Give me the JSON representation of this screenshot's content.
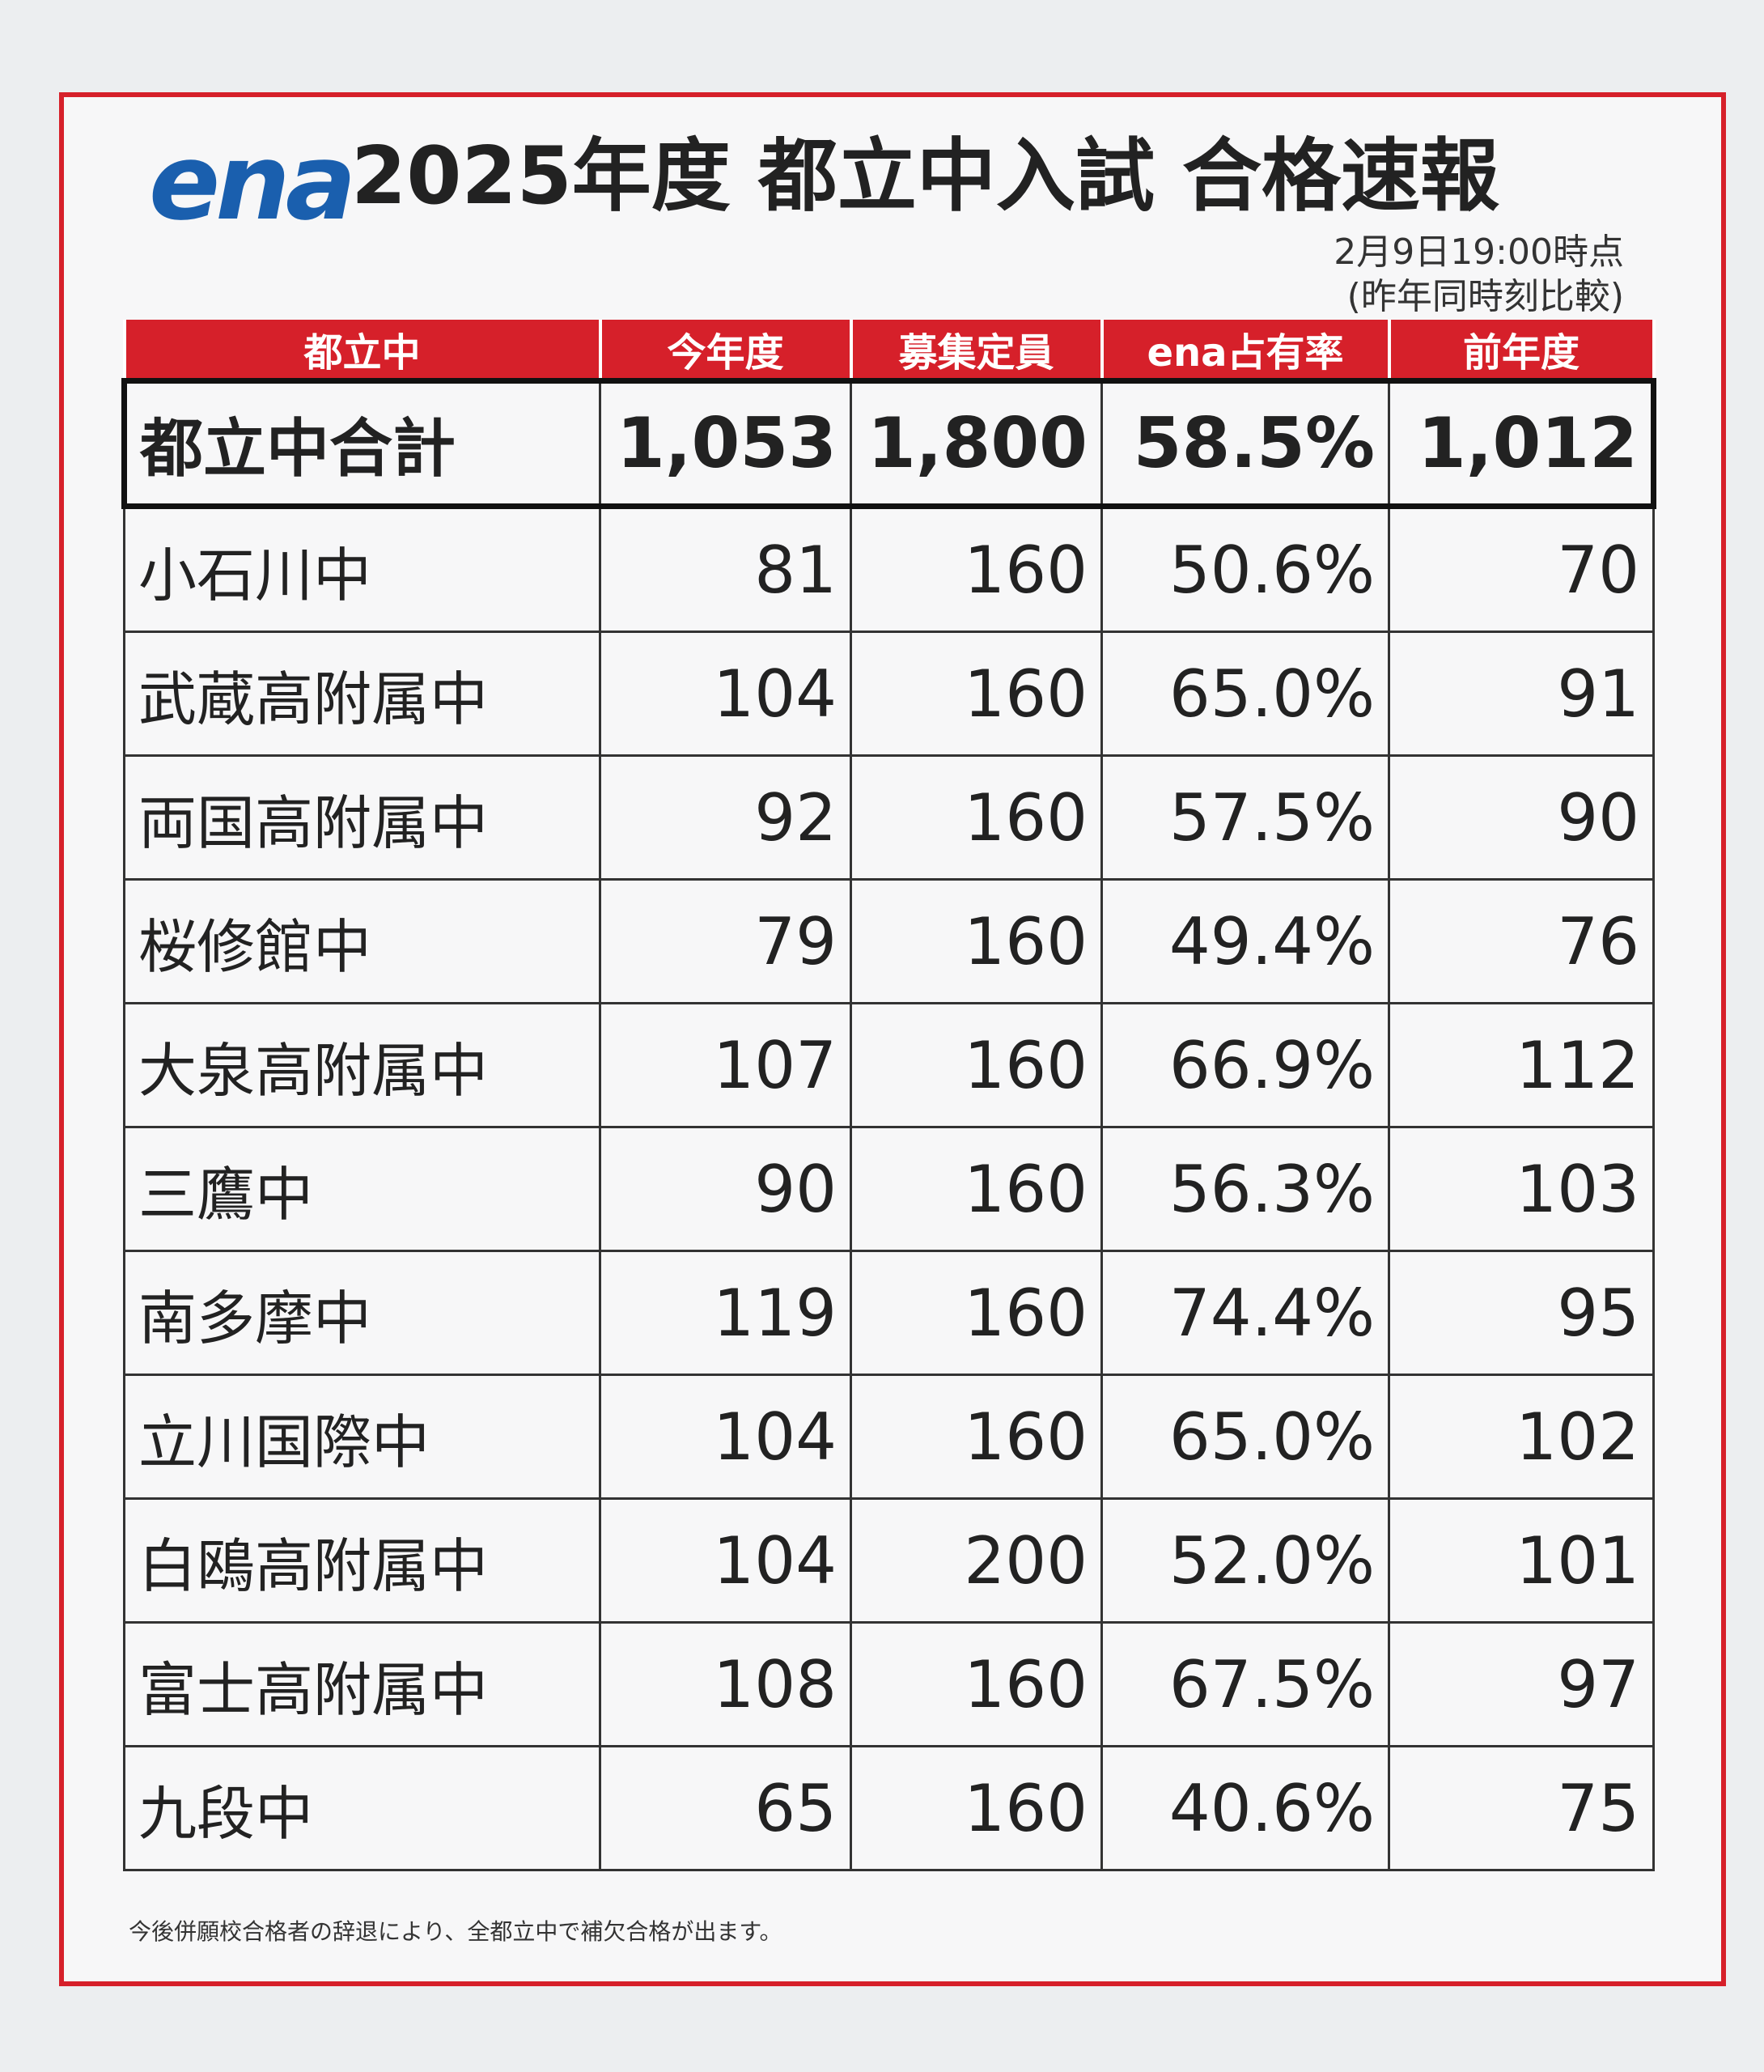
{
  "header": {
    "logo": "ena",
    "title": "2025年度 都立中入試 合格速報",
    "timestamp": "2月9日19:00時点",
    "comparison_note": "(昨年同時刻比較)"
  },
  "table": {
    "columns": [
      "都立中",
      "今年度",
      "募集定員",
      "ena占有率",
      "前年度"
    ],
    "total": [
      "都立中合計",
      "1,053",
      "1,800",
      "58.5%",
      "1,012"
    ],
    "rows": [
      [
        "小石川中",
        "81",
        "160",
        "50.6%",
        "70"
      ],
      [
        "武蔵高附属中",
        "104",
        "160",
        "65.0%",
        "91"
      ],
      [
        "両国高附属中",
        "92",
        "160",
        "57.5%",
        "90"
      ],
      [
        "桜修館中",
        "79",
        "160",
        "49.4%",
        "76"
      ],
      [
        "大泉高附属中",
        "107",
        "160",
        "66.9%",
        "112"
      ],
      [
        "三鷹中",
        "90",
        "160",
        "56.3%",
        "103"
      ],
      [
        "南多摩中",
        "119",
        "160",
        "74.4%",
        "95"
      ],
      [
        "立川国際中",
        "104",
        "160",
        "65.0%",
        "102"
      ],
      [
        "白鴎高附属中",
        "104",
        "200",
        "52.0%",
        "101"
      ],
      [
        "富士高附属中",
        "108",
        "160",
        "67.5%",
        "97"
      ],
      [
        "九段中",
        "65",
        "160",
        "40.6%",
        "75"
      ]
    ]
  },
  "footnote": "今後併願校合格者の辞退により、全都立中で補欠合格が出ます。"
}
